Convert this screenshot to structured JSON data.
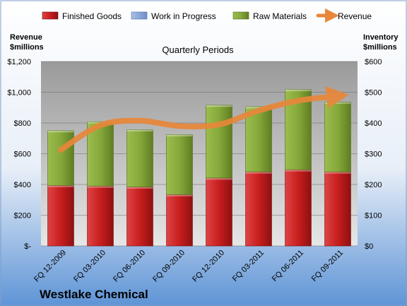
{
  "chart_data": {
    "type": "bar",
    "stacked": true,
    "subtitle": "Quarterly Periods",
    "company": "Westlake Chemical",
    "categories": [
      "FQ 12-2009",
      "FQ 03-2010",
      "FQ 06-2010",
      "FQ 09-2010",
      "FQ 12-2010",
      "FQ 03-2011",
      "FQ 06-2011",
      "FQ 09-2011"
    ],
    "left_axis": {
      "label_line1": "Revenue",
      "label_line2": "$millions",
      "range": [
        0,
        1200
      ],
      "ticks": [
        0,
        200,
        400,
        600,
        800,
        1000,
        1200
      ],
      "tick_labels": [
        "$-",
        "$200",
        "$400",
        "$600",
        "$800",
        "$1,000",
        "$1,200"
      ]
    },
    "right_axis": {
      "label_line1": "Inventory",
      "label_line2": "$millions",
      "range": [
        0,
        600
      ],
      "ticks": [
        0,
        100,
        200,
        300,
        400,
        500,
        600
      ],
      "tick_labels": [
        "$0",
        "$100",
        "$200",
        "$300",
        "$400",
        "$500",
        "$600"
      ]
    },
    "series": [
      {
        "name": "Finished Goods",
        "axis": "right",
        "color": "#cc2222",
        "values": [
          197,
          195,
          192,
          167,
          221,
          241,
          248,
          241
        ]
      },
      {
        "name": "Work in Progress",
        "axis": "right",
        "color": "#8fa8d8",
        "values": [
          0,
          0,
          0,
          0,
          0,
          0,
          0,
          0
        ]
      },
      {
        "name": "Raw Materials",
        "axis": "right",
        "color": "#8aaa3c",
        "values": [
          178,
          209,
          186,
          195,
          237,
          212,
          261,
          227
        ]
      },
      {
        "name": "Revenue",
        "axis": "left",
        "type": "line",
        "color": "#e8873a",
        "values": [
          625,
          785,
          815,
          780,
          790,
          880,
          945,
          975
        ]
      }
    ],
    "grid": true,
    "legend_position": "top"
  }
}
